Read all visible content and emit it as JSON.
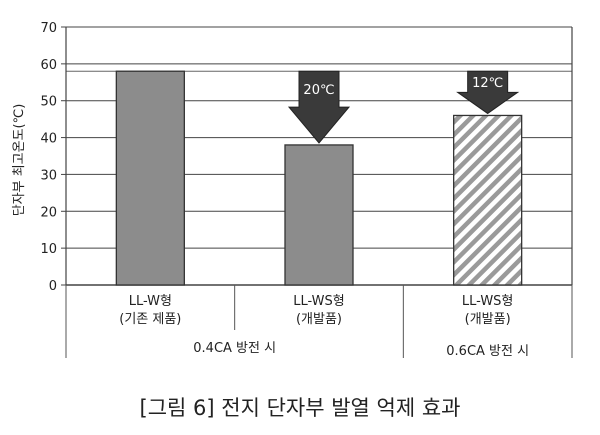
{
  "chart_data": {
    "type": "bar",
    "ylabel": "단자부 최고온도(℃)",
    "ylim": [
      0,
      70
    ],
    "yticks": [
      0,
      10,
      20,
      30,
      40,
      50,
      60,
      70
    ],
    "reference_line": 58,
    "bars": [
      {
        "label_line1": "LL-W형",
        "label_line2": "(기존 제품)",
        "value": 58,
        "pattern": "solid",
        "color": "#8c8c8c"
      },
      {
        "label_line1": "LL-WS형",
        "label_line2": "(개발품)",
        "value": 38,
        "pattern": "solid",
        "color": "#8c8c8c"
      },
      {
        "label_line1": "LL-WS형",
        "label_line2": "(개발품)",
        "value": 46,
        "pattern": "hatched",
        "color": "#9a9a9a"
      }
    ],
    "groups": [
      {
        "label": "0.4CA 방전 시"
      },
      {
        "label": "0.6CA 방전 시"
      }
    ],
    "annotations": [
      {
        "text": "20℃",
        "bar_index": 1
      },
      {
        "text": "12℃",
        "bar_index": 2
      }
    ]
  },
  "caption": "[그림 6] 전지 단자부 발열 억제 효과"
}
